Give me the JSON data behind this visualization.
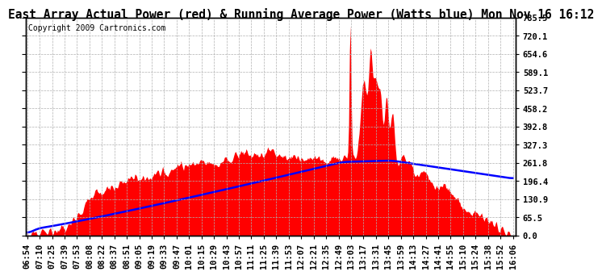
{
  "title": "East Array Actual Power (red) & Running Average Power (Watts blue) Mon Nov 16 16:12",
  "copyright": "Copyright 2009 Cartronics.com",
  "ylabel_right_ticks": [
    0.0,
    65.5,
    130.9,
    196.4,
    261.8,
    327.3,
    392.8,
    458.2,
    523.7,
    589.1,
    654.6,
    720.1,
    785.5
  ],
  "ymax": 785.5,
  "ymin": 0.0,
  "x_labels": [
    "06:54",
    "07:10",
    "07:25",
    "07:39",
    "07:53",
    "08:08",
    "08:22",
    "08:37",
    "08:51",
    "09:05",
    "09:19",
    "09:33",
    "09:47",
    "10:01",
    "10:15",
    "10:29",
    "10:43",
    "10:57",
    "11:11",
    "11:25",
    "11:39",
    "11:53",
    "12:07",
    "12:21",
    "12:35",
    "12:49",
    "13:03",
    "13:17",
    "13:31",
    "13:45",
    "13:59",
    "14:13",
    "14:27",
    "14:41",
    "14:55",
    "15:10",
    "15:24",
    "15:38",
    "15:52",
    "16:06"
  ],
  "bg_color": "#ffffff",
  "plot_bg_color": "#ffffff",
  "grid_color": "#b0b0b0",
  "actual_color": "#ff0000",
  "average_color": "#0000ff",
  "title_fontsize": 10.5,
  "copyright_fontsize": 7,
  "tick_fontsize": 7.5
}
